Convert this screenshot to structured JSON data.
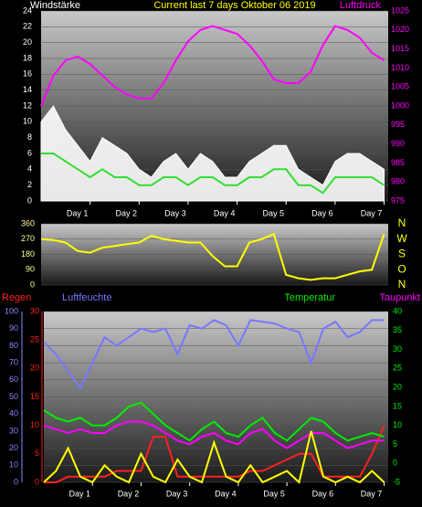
{
  "chart_data": [
    {
      "type": "line",
      "title": "Current last 7 days Oktober 06 2019",
      "x": [
        0,
        6,
        12,
        18,
        24,
        30,
        36,
        42,
        48,
        54,
        60,
        66,
        72,
        78,
        84,
        90,
        96,
        102,
        108,
        114,
        120,
        126,
        132,
        138,
        144,
        150,
        156,
        162,
        168
      ],
      "xlim": [
        0,
        170
      ],
      "xticks": [
        {
          "value": 24,
          "label": "Day 1"
        },
        {
          "value": 48,
          "label": "Day 2"
        },
        {
          "value": 72,
          "label": "Day 3"
        },
        {
          "value": 96,
          "label": "Day 4"
        },
        {
          "value": 120,
          "label": "Day 5"
        },
        {
          "value": 144,
          "label": "Day 6"
        },
        {
          "value": 168,
          "label": "Day 7"
        }
      ],
      "ylim": [
        0,
        24
      ],
      "yticks": [
        0,
        2,
        4,
        6,
        8,
        10,
        12,
        14,
        16,
        18,
        20,
        22,
        24
      ],
      "y2lim": [
        975,
        1025
      ],
      "y2ticks": [
        975,
        980,
        985,
        990,
        995,
        1000,
        1005,
        1010,
        1015,
        1020,
        1025
      ],
      "grid": true,
      "series": [
        {
          "name": "Windstärke",
          "color": "#ffffff",
          "style": "area",
          "values": [
            10,
            12,
            9,
            7,
            5,
            8,
            7,
            6,
            4,
            3,
            5,
            6,
            4,
            6,
            5,
            3,
            3,
            5,
            6,
            7,
            7,
            4,
            3,
            2,
            5,
            6,
            6,
            5,
            4
          ]
        },
        {
          "color": "#33dd33",
          "values": [
            6,
            6,
            5,
            4,
            3,
            4,
            3,
            3,
            2,
            2,
            3,
            3,
            2,
            3,
            3,
            2,
            2,
            3,
            3,
            4,
            4,
            2,
            2,
            1,
            3,
            3,
            3,
            3,
            2
          ]
        },
        {
          "name": "Luftdruck",
          "color": "#ff00ff",
          "axis": "y2",
          "values": [
            1000,
            1008,
            1012,
            1013,
            1011,
            1008,
            1005,
            1003,
            1002,
            1002,
            1006,
            1012,
            1017,
            1020,
            1021,
            1020,
            1019,
            1016,
            1012,
            1007,
            1006,
            1006,
            1009,
            1016,
            1021,
            1020,
            1018,
            1014,
            1012
          ]
        }
      ]
    },
    {
      "type": "line",
      "x": [
        0,
        6,
        12,
        18,
        24,
        30,
        36,
        42,
        48,
        54,
        60,
        66,
        72,
        78,
        84,
        90,
        96,
        102,
        108,
        114,
        120,
        126,
        132,
        138,
        144,
        150,
        156,
        162,
        168
      ],
      "xlim": [
        0,
        170
      ],
      "ylim": [
        0,
        360
      ],
      "yticks": [
        0,
        90,
        180,
        270,
        360
      ],
      "y2lim": [
        0,
        360
      ],
      "y2ticks": [
        {
          "value": 360,
          "label": "N"
        },
        {
          "value": 270,
          "label": "W"
        },
        {
          "value": 180,
          "label": "S"
        },
        {
          "value": 90,
          "label": "O"
        },
        {
          "value": 0,
          "label": "N"
        }
      ],
      "grid": true,
      "series": [
        {
          "color": "#ffff00",
          "values": [
            270,
            265,
            250,
            200,
            190,
            220,
            230,
            240,
            250,
            290,
            270,
            260,
            250,
            250,
            170,
            110,
            110,
            250,
            270,
            300,
            60,
            40,
            30,
            40,
            40,
            60,
            80,
            90,
            300
          ]
        }
      ]
    },
    {
      "type": "line",
      "x": [
        0,
        6,
        12,
        18,
        24,
        30,
        36,
        42,
        48,
        54,
        60,
        66,
        72,
        78,
        84,
        90,
        96,
        102,
        108,
        114,
        120,
        126,
        132,
        138,
        144,
        150,
        156,
        162,
        168
      ],
      "xlim": [
        0,
        170
      ],
      "xticks": [
        {
          "value": 24,
          "label": "Day 1"
        },
        {
          "value": 48,
          "label": "Day 2"
        },
        {
          "value": 72,
          "label": "Day 3"
        },
        {
          "value": 96,
          "label": "Day 4"
        },
        {
          "value": 120,
          "label": "Day 5"
        },
        {
          "value": 144,
          "label": "Day 6"
        },
        {
          "value": 168,
          "label": "Day 7"
        }
      ],
      "ylim": [
        0,
        100
      ],
      "yticks": [
        0,
        10,
        20,
        30,
        40,
        50,
        60,
        70,
        80,
        90,
        100
      ],
      "y3lim": [
        0,
        30
      ],
      "y3ticks": [
        0,
        5,
        10,
        15,
        20,
        25,
        30
      ],
      "y2lim": [
        -5,
        40
      ],
      "y2ticks": [
        -5,
        0,
        5,
        10,
        15,
        20,
        25,
        30,
        35,
        40
      ],
      "grid": true,
      "series": [
        {
          "name": "Regen",
          "color": "#ff2020",
          "axis": "y3",
          "values": [
            0,
            0,
            1,
            1,
            1,
            1,
            2,
            2,
            2,
            8,
            8,
            1,
            1,
            1,
            1,
            1,
            1,
            2,
            2,
            3,
            4,
            5,
            5,
            1,
            1,
            1,
            1,
            5,
            10
          ]
        },
        {
          "name": "Luftfeuchte",
          "color": "#7777ff",
          "values": [
            82,
            75,
            65,
            55,
            70,
            85,
            80,
            85,
            90,
            88,
            90,
            75,
            92,
            90,
            95,
            92,
            80,
            95,
            94,
            93,
            90,
            88,
            70,
            90,
            94,
            85,
            88,
            95,
            95
          ]
        },
        {
          "name": "Temperatur",
          "color": "#00ee00",
          "axis": "y2",
          "values": [
            14,
            12,
            11,
            12,
            10,
            10,
            12,
            15,
            16,
            13,
            10,
            8,
            6,
            9,
            11,
            8,
            7,
            10,
            12,
            8,
            6,
            9,
            12,
            11,
            8,
            6,
            7,
            8,
            7
          ]
        },
        {
          "name": "Taupunkt",
          "color": "#ff00ff",
          "axis": "y2",
          "values": [
            10,
            9,
            8,
            9,
            8,
            8,
            10,
            11,
            11,
            10,
            8,
            6,
            5,
            7,
            8,
            6,
            5,
            8,
            9,
            6,
            4,
            6,
            8,
            8,
            6,
            4,
            5,
            6,
            6
          ]
        },
        {
          "color": "#ffff00",
          "axis": "y3",
          "values": [
            0,
            2,
            6,
            1,
            0,
            3,
            1,
            0,
            5,
            1,
            0,
            4,
            1,
            0,
            7,
            1,
            0,
            3,
            0,
            1,
            2,
            0,
            9,
            1,
            0,
            1,
            0,
            2,
            0
          ]
        }
      ]
    }
  ]
}
